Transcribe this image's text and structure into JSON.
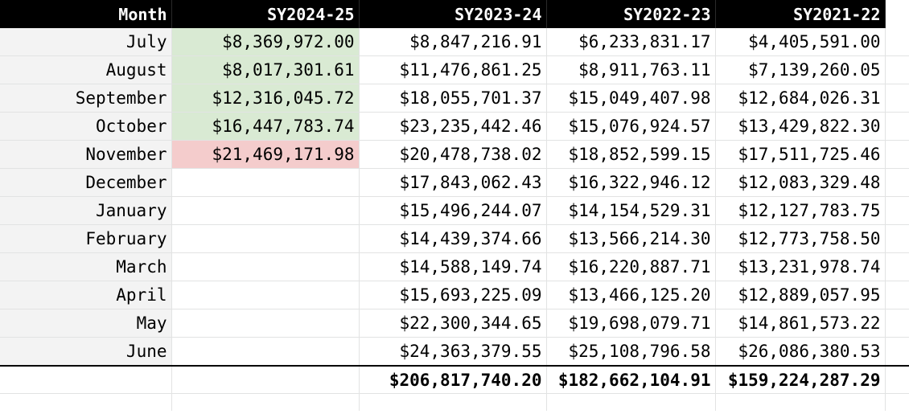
{
  "headers": [
    "Month",
    "SY2024-25",
    "SY2023-24",
    "SY2022-23",
    "SY2021-22"
  ],
  "rows": [
    {
      "month": "July",
      "sy2024_25": "$8,369,972.00",
      "sy2023_24": "$8,847,216.91",
      "sy2022_23": "$6,233,831.17",
      "sy2021_22": "$4,405,591.00"
    },
    {
      "month": "August",
      "sy2024_25": "$8,017,301.61",
      "sy2023_24": "$11,476,861.25",
      "sy2022_23": "$8,911,763.11",
      "sy2021_22": "$7,139,260.05"
    },
    {
      "month": "September",
      "sy2024_25": "$12,316,045.72",
      "sy2023_24": "$18,055,701.37",
      "sy2022_23": "$15,049,407.98",
      "sy2021_22": "$12,684,026.31"
    },
    {
      "month": "October",
      "sy2024_25": "$16,447,783.74",
      "sy2023_24": "$23,235,442.46",
      "sy2022_23": "$15,076,924.57",
      "sy2021_22": "$13,429,822.30"
    },
    {
      "month": "November",
      "sy2024_25": "$21,469,171.98",
      "sy2023_24": "$20,478,738.02",
      "sy2022_23": "$18,852,599.15",
      "sy2021_22": "$17,511,725.46"
    },
    {
      "month": "December",
      "sy2024_25": "",
      "sy2023_24": "$17,843,062.43",
      "sy2022_23": "$16,322,946.12",
      "sy2021_22": "$12,083,329.48"
    },
    {
      "month": "January",
      "sy2024_25": "",
      "sy2023_24": "$15,496,244.07",
      "sy2022_23": "$14,154,529.31",
      "sy2021_22": "$12,127,783.75"
    },
    {
      "month": "February",
      "sy2024_25": "",
      "sy2023_24": "$14,439,374.66",
      "sy2022_23": "$13,566,214.30",
      "sy2021_22": "$12,773,758.50"
    },
    {
      "month": "March",
      "sy2024_25": "",
      "sy2023_24": "$14,588,149.74",
      "sy2022_23": "$16,220,887.71",
      "sy2021_22": "$13,231,978.74"
    },
    {
      "month": "April",
      "sy2024_25": "",
      "sy2023_24": "$15,693,225.09",
      "sy2022_23": "$13,466,125.20",
      "sy2021_22": "$12,889,057.95"
    },
    {
      "month": "May",
      "sy2024_25": "",
      "sy2023_24": "$22,300,344.65",
      "sy2022_23": "$19,698,079.71",
      "sy2021_22": "$14,861,573.22"
    },
    {
      "month": "June",
      "sy2024_25": "",
      "sy2023_24": "$24,363,379.55",
      "sy2022_23": "$25,108,796.58",
      "sy2021_22": "$26,086,380.53"
    }
  ],
  "totals": {
    "sy2024_25": "",
    "sy2023_24": "$206,817,740.20",
    "sy2022_23": "$182,662,104.91",
    "sy2021_22": "$159,224,287.29"
  },
  "highlight_colors": {
    "green": "#d9ead3",
    "red": "#f4cccc",
    "header_bg": "#000000",
    "month_bg": "#f3f3f3"
  }
}
